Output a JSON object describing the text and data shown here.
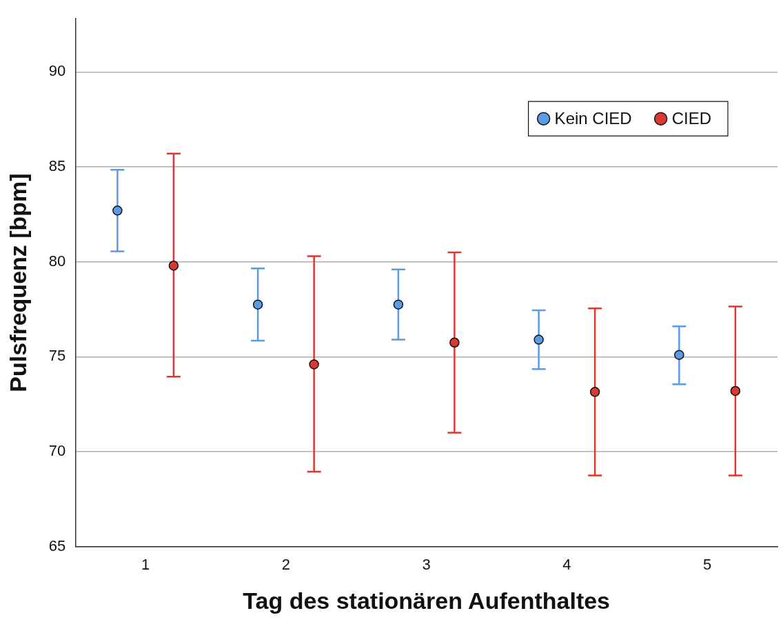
{
  "chart_data": {
    "type": "scatter",
    "xlabel": "Tag des stationären Aufenthaltes",
    "ylabel": "Pulsfrequenz [bpm]",
    "categories": [
      "1",
      "2",
      "3",
      "4",
      "5"
    ],
    "ylim": [
      65,
      92.8
    ],
    "yticks": [
      65,
      70,
      75,
      80,
      85,
      90
    ],
    "grid": "y",
    "legend": "top right",
    "marker": "circle",
    "series": [
      {
        "name": "Kein CIED",
        "color": "#5a9be6",
        "values": [
          82.7,
          77.75,
          77.75,
          75.9,
          75.1
        ],
        "errors": [
          [
            80.55,
            84.85
          ],
          [
            75.85,
            79.65
          ],
          [
            75.9,
            79.6
          ],
          [
            74.35,
            77.45
          ],
          [
            73.55,
            76.6
          ]
        ]
      },
      {
        "name": "CIED",
        "color": "#d9392f",
        "values": [
          79.8,
          74.6,
          75.75,
          73.15,
          73.2
        ],
        "errors": [
          [
            73.95,
            85.7
          ],
          [
            68.95,
            80.3
          ],
          [
            71.0,
            80.5
          ],
          [
            68.75,
            77.55
          ],
          [
            68.75,
            77.65
          ]
        ]
      }
    ]
  }
}
